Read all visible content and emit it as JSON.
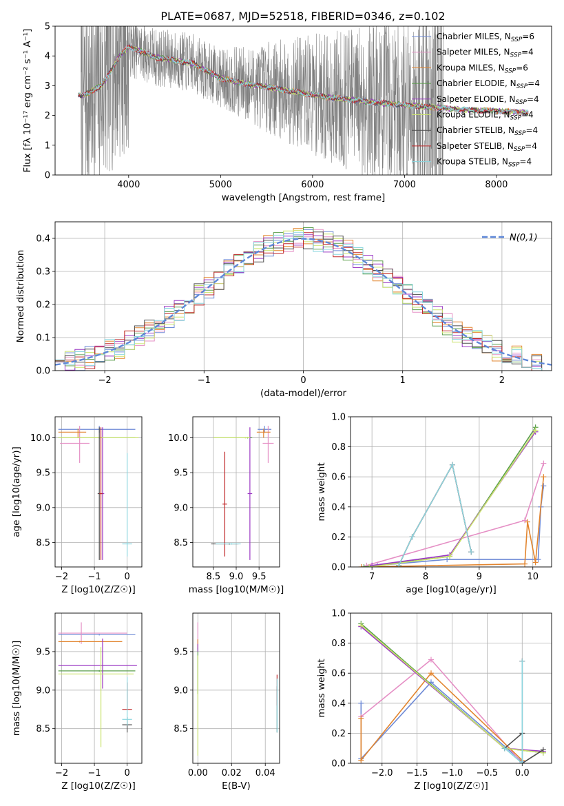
{
  "title": "PLATE=0687, MJD=52518, FIBERID=0346, z=0.102",
  "models": [
    {
      "label": "Chabrier MILES, N",
      "sub": "SSP",
      "tail": "=6",
      "color": "#6e8ad6"
    },
    {
      "label": "Salpeter MILES, N",
      "sub": "SSP",
      "tail": "=4",
      "color": "#e58fc5"
    },
    {
      "label": "Kroupa MILES, N",
      "sub": "SSP",
      "tail": "=6",
      "color": "#e2852f"
    },
    {
      "label": "Chabrier ELODIE, N",
      "sub": "SSP",
      "tail": "=4",
      "color": "#5a9e4b"
    },
    {
      "label": "Salpeter ELODIE, N",
      "sub": "SSP",
      "tail": "=4",
      "color": "#9b38c4"
    },
    {
      "label": "Kroupa ELODIE, N",
      "sub": "SSP",
      "tail": "=4",
      "color": "#c9e26b"
    },
    {
      "label": "Chabrier STELIB, N",
      "sub": "SSP",
      "tail": "=4",
      "color": "#4d4d4d"
    },
    {
      "label": "Salpeter STELIB, N",
      "sub": "SSP",
      "tail": "=4",
      "color": "#c0282a"
    },
    {
      "label": "Kroupa STELIB, N",
      "sub": "SSP",
      "tail": "=4",
      "color": "#8ad6df"
    }
  ],
  "colors": {
    "data": "#808080",
    "normal": "#5e87d8",
    "grid": "#b0b0b0"
  },
  "chart_data": [
    {
      "id": "spectrum",
      "type": "line",
      "title": "PLATE=0687, MJD=52518, FIBERID=0346, z=0.102",
      "xlabel": "wavelength [Angstrom, rest frame]",
      "ylabel": "Flux [fλ 10⁻¹⁷ erg cm⁻² s⁻¹ A⁻¹]",
      "xlim": [
        3200,
        8600
      ],
      "ylim": [
        0,
        5
      ],
      "xticks": [
        4000,
        5000,
        6000,
        7000,
        8000
      ],
      "yticks": [
        0,
        1,
        2,
        3,
        4,
        5
      ],
      "model_continuum": {
        "x": [
          3450,
          3500,
          3700,
          3750,
          3900,
          4000,
          4100,
          4300,
          4500,
          4700,
          4850,
          5000,
          5300,
          5600,
          5900,
          6200,
          6500,
          6800,
          7200,
          7600,
          8000,
          8350
        ],
        "y": [
          2.7,
          2.65,
          3.0,
          3.2,
          4.0,
          4.3,
          4.2,
          3.95,
          3.85,
          3.75,
          3.5,
          3.25,
          3.05,
          2.9,
          2.75,
          2.6,
          2.5,
          2.4,
          2.3,
          2.2,
          2.15,
          2.1
        ]
      },
      "data_spectrum": {
        "x_range": [
          3480,
          7420
        ],
        "note": "noisy observed spectrum, clipped at axis limits"
      },
      "legend_loc": "upper right"
    },
    {
      "id": "residuals",
      "type": "step",
      "xlabel": "(data-model)/error",
      "ylabel": "Normed distribution",
      "xlim": [
        -2.5,
        2.5
      ],
      "ylim": [
        0,
        0.45
      ],
      "xticks": [
        -2,
        -1,
        0,
        1,
        2
      ],
      "yticks": [
        0.0,
        0.1,
        0.2,
        0.3,
        0.4
      ],
      "bin_width": 0.1,
      "bin_start": -2.5,
      "reference_label": "N(0,1)",
      "legend_loc": "upper right"
    },
    {
      "id": "age_vs_Z",
      "type": "errorbar",
      "xlabel": "Z [log10(Z/Z☉)]",
      "ylabel": "age  [log10(age/yr)]",
      "xlim": [
        -2.2,
        0.45
      ],
      "ylim": [
        8.15,
        10.3
      ],
      "xticks": [
        -2,
        -1,
        0
      ],
      "yticks": [
        8.5,
        9.0,
        9.5,
        10.0
      ],
      "points": [
        {
          "m": 0,
          "x": -0.85,
          "xe": [
            1.25,
            1.1
          ],
          "y": 10.12,
          "ye": [
            0.05,
            0.05
          ]
        },
        {
          "m": 1,
          "x": -1.45,
          "xe": [
            0.6,
            0.3
          ],
          "y": 9.92,
          "ye": [
            0.28,
            0.25
          ]
        },
        {
          "m": 2,
          "x": -1.5,
          "xe": [
            0.6,
            0.25
          ],
          "y": 10.08,
          "ye": [
            0.08,
            0.05
          ]
        },
        {
          "m": 3,
          "x": -0.85,
          "xe": [
            1.25,
            1.1
          ],
          "y": 10.0,
          "ye": [
            0.01,
            0.01
          ]
        },
        {
          "m": 4,
          "x": -0.75,
          "xe": [
            0.05,
            0.05
          ],
          "y": 9.2,
          "ye": [
            0.95,
            0.95
          ]
        },
        {
          "m": 5,
          "x": -0.8,
          "xe": [
            1.3,
            1.15
          ],
          "y": 10.0,
          "ye": [
            0.01,
            0.01
          ]
        },
        {
          "m": 6,
          "x": -0.85,
          "xe": [
            0.05,
            0.05
          ],
          "y": 9.2,
          "ye": [
            0.95,
            0.95
          ]
        },
        {
          "m": 7,
          "x": -0.8,
          "xe": [
            0.05,
            0.05
          ],
          "y": 9.2,
          "ye": [
            0.95,
            0.95
          ]
        },
        {
          "m": 8,
          "x": 0.0,
          "xe": [
            0.15,
            0.15
          ],
          "y": 8.48,
          "ye": [
            0.18,
            1.3
          ]
        }
      ]
    },
    {
      "id": "age_vs_mass",
      "type": "errorbar",
      "xlabel": "mass [log10(M/M☉)]",
      "ylabel": "",
      "xlim": [
        8.05,
        9.95
      ],
      "ylim": [
        8.15,
        10.3
      ],
      "xticks": [
        8.5,
        9.0,
        9.5
      ],
      "yticks": [
        8.5,
        9.0,
        9.5,
        10.0
      ],
      "points": [
        {
          "m": 0,
          "x": 9.62,
          "xe": [
            0.15,
            0.15
          ],
          "y": 10.12,
          "ye": [
            0.05,
            0.05
          ]
        },
        {
          "m": 1,
          "x": 9.7,
          "xe": [
            0.12,
            0.12
          ],
          "y": 9.92,
          "ye": [
            0.28,
            0.25
          ]
        },
        {
          "m": 2,
          "x": 9.6,
          "xe": [
            0.15,
            0.15
          ],
          "y": 10.08,
          "ye": [
            0.08,
            0.05
          ]
        },
        {
          "m": 3,
          "x": 9.25,
          "xe": [
            0.75,
            0.1
          ],
          "y": 10.0,
          "ye": [
            0.01,
            0.01
          ]
        },
        {
          "m": 4,
          "x": 9.3,
          "xe": [
            0.05,
            0.05
          ],
          "y": 9.2,
          "ye": [
            0.95,
            0.95
          ]
        },
        {
          "m": 5,
          "x": 9.2,
          "xe": [
            0.7,
            0.1
          ],
          "y": 10.0,
          "ye": [
            0.01,
            0.01
          ]
        },
        {
          "m": 6,
          "x": 8.85,
          "xe": [
            0.4,
            0.2
          ],
          "y": 8.48,
          "ye": [
            0.01,
            0.01
          ]
        },
        {
          "m": 7,
          "x": 8.75,
          "xe": [
            0.05,
            0.05
          ],
          "y": 9.05,
          "ye": [
            0.75,
            0.75
          ]
        },
        {
          "m": 8,
          "x": 8.9,
          "xe": [
            0.35,
            0.2
          ],
          "y": 8.48,
          "ye": [
            0.01,
            0.01
          ]
        }
      ]
    },
    {
      "id": "weight_vs_age",
      "type": "line",
      "xlabel": "age  [log10(age/yr)]",
      "ylabel": "mass weight",
      "xlim": [
        6.6,
        10.35
      ],
      "ylim": [
        0,
        1
      ],
      "xticks": [
        7,
        8,
        9,
        10
      ],
      "yticks": [
        0.0,
        0.2,
        0.4,
        0.6,
        0.8,
        1.0
      ],
      "series": [
        {
          "m": 0,
          "x": [
            7.1,
            8.4,
            10.1,
            10.15,
            10.2
          ],
          "y": [
            0.01,
            0.05,
            0.05,
            0.4,
            0.54
          ]
        },
        {
          "m": 1,
          "x": [
            6.9,
            9.85,
            10.2
          ],
          "y": [
            0.01,
            0.31,
            0.69
          ]
        },
        {
          "m": 2,
          "x": [
            6.8,
            9.85,
            9.9,
            10.05,
            10.2
          ],
          "y": [
            0.0,
            0.02,
            0.3,
            0.03,
            0.6
          ]
        },
        {
          "m": 3,
          "x": [
            6.85,
            8.45,
            10.05
          ],
          "y": [
            0.0,
            0.07,
            0.93
          ]
        },
        {
          "m": 4,
          "x": [
            7.0,
            8.45,
            10.05
          ],
          "y": [
            0.01,
            0.08,
            0.9
          ]
        },
        {
          "m": 5,
          "x": [
            6.95,
            8.45,
            10.05
          ],
          "y": [
            0.0,
            0.07,
            0.91
          ]
        },
        {
          "m": 6,
          "x": [
            7.5,
            7.75,
            8.5,
            8.85
          ],
          "y": [
            0.01,
            0.2,
            0.68,
            0.1
          ]
        },
        {
          "m": 7,
          "x": [
            7.5,
            7.75,
            8.5,
            8.85
          ],
          "y": [
            0.01,
            0.2,
            0.68,
            0.1
          ]
        },
        {
          "m": 8,
          "x": [
            7.5,
            7.75,
            8.5,
            8.85
          ],
          "y": [
            0.01,
            0.2,
            0.68,
            0.1
          ]
        }
      ]
    },
    {
      "id": "mass_vs_Z",
      "type": "errorbar",
      "xlabel": "Z [log10(Z/Z☉)]",
      "ylabel": "mass [log10(M/M☉)]",
      "xlim": [
        -2.2,
        0.45
      ],
      "ylim": [
        8.05,
        10.0
      ],
      "xticks": [
        -2,
        -1,
        0
      ],
      "yticks": [
        8.5,
        9.0,
        9.5
      ],
      "points": [
        {
          "m": 0,
          "x": -0.85,
          "xe": [
            1.25,
            1.1
          ],
          "y": 9.72,
          "ye": [
            0.01,
            0.01
          ]
        },
        {
          "m": 1,
          "x": -1.4,
          "xe": [
            0.7,
            1.4
          ],
          "y": 9.74,
          "ye": [
            0.14,
            0.14
          ]
        },
        {
          "m": 2,
          "x": -1.45,
          "xe": [
            0.65,
            1.3
          ],
          "y": 9.63,
          "ye": [
            0.01,
            0.01
          ]
        },
        {
          "m": 3,
          "x": -0.85,
          "xe": [
            1.25,
            1.1
          ],
          "y": 9.25,
          "ye": [
            0.01,
            0.01
          ]
        },
        {
          "m": 4,
          "x": -0.75,
          "xe": [
            1.35,
            1.05
          ],
          "y": 9.32,
          "ye": [
            0.3,
            0.35
          ]
        },
        {
          "m": 5,
          "x": -0.8,
          "xe": [
            1.3,
            1.0
          ],
          "y": 9.21,
          "ye": [
            0.95,
            0.35
          ]
        },
        {
          "m": 6,
          "x": 0.0,
          "xe": [
            0.15,
            0.15
          ],
          "y": 8.55,
          "ye": [
            0.1,
            0.1
          ]
        },
        {
          "m": 7,
          "x": 0.0,
          "xe": [
            0.15,
            0.15
          ],
          "y": 8.75,
          "ye": [
            0.01,
            0.35
          ]
        },
        {
          "m": 8,
          "x": 0.0,
          "xe": [
            0.15,
            0.15
          ],
          "y": 8.62,
          "ye": [
            0.08,
            0.55
          ]
        }
      ]
    },
    {
      "id": "mass_vs_EBV",
      "type": "errorbar",
      "xlabel": "E(B-V)",
      "ylabel": "",
      "xlim": [
        -0.003,
        0.0485
      ],
      "ylim": [
        8.05,
        10.0
      ],
      "xticks": [
        0.0,
        0.02,
        0.04
      ],
      "yticks": [
        8.5,
        9.0,
        9.5
      ],
      "points": [
        {
          "m": 0,
          "x": 0.0,
          "xe": [
            0.0,
            0.0
          ],
          "y": 9.6,
          "ye": [
            0.05,
            0.05
          ]
        },
        {
          "m": 1,
          "x": 0.0,
          "xe": [
            0.0,
            0.0
          ],
          "y": 9.7,
          "ye": [
            0.18,
            0.18
          ]
        },
        {
          "m": 2,
          "x": 0.0,
          "xe": [
            0.0,
            0.0
          ],
          "y": 9.6,
          "ye": [
            0.06,
            0.06
          ]
        },
        {
          "m": 3,
          "x": 0.0,
          "xe": [
            0.0,
            0.0
          ],
          "y": 9.25,
          "ye": [
            0.3,
            0.3
          ]
        },
        {
          "m": 4,
          "x": 0.0,
          "xe": [
            0.0,
            0.0
          ],
          "y": 9.55,
          "ye": [
            0.05,
            0.05
          ]
        },
        {
          "m": 5,
          "x": 0.0,
          "xe": [
            0.0,
            0.0
          ],
          "y": 8.8,
          "ye": [
            0.65,
            0.65
          ]
        },
        {
          "m": 6,
          "x": 0.047,
          "xe": [
            0.0,
            0.0
          ],
          "y": 8.75,
          "ye": [
            0.3,
            0.3
          ]
        },
        {
          "m": 7,
          "x": 0.047,
          "xe": [
            0.0,
            0.0
          ],
          "y": 9.0,
          "ye": [
            0.2,
            0.2
          ]
        },
        {
          "m": 8,
          "x": 0.047,
          "xe": [
            0.0,
            0.0
          ],
          "y": 8.8,
          "ye": [
            0.35,
            0.35
          ]
        }
      ]
    },
    {
      "id": "weight_vs_Z",
      "type": "line",
      "xlabel": "Z [log10(Z/Z☉)]",
      "ylabel": "mass weight",
      "xlim": [
        -2.45,
        0.42
      ],
      "ylim": [
        0,
        1
      ],
      "xticks": [
        -2.0,
        -1.5,
        -1.0,
        -0.5,
        0.0
      ],
      "yticks": [
        0.0,
        0.2,
        0.4,
        0.6,
        0.8,
        1.0
      ],
      "series": [
        {
          "m": 0,
          "x": [
            -2.3,
            -2.3,
            -1.3,
            0.0,
            0.0
          ],
          "y": [
            0.4,
            0.03,
            0.54,
            0.01,
            0.0
          ]
        },
        {
          "m": 1,
          "x": [
            -2.3,
            -1.3,
            0.0
          ],
          "y": [
            0.31,
            0.69,
            0.0
          ]
        },
        {
          "m": 2,
          "x": [
            -2.3,
            -2.3,
            -1.3,
            0.0
          ],
          "y": [
            0.3,
            0.02,
            0.6,
            0.02
          ]
        },
        {
          "m": 3,
          "x": [
            -2.3,
            -0.25,
            0.3
          ],
          "y": [
            0.93,
            0.1,
            0.07
          ]
        },
        {
          "m": 4,
          "x": [
            -2.3,
            -0.25,
            0.3
          ],
          "y": [
            0.91,
            0.1,
            0.08
          ]
        },
        {
          "m": 5,
          "x": [
            -2.3,
            -0.25,
            0.3
          ],
          "y": [
            0.92,
            0.1,
            0.07
          ]
        },
        {
          "m": 6,
          "x": [
            -0.25,
            0.0,
            0.0,
            0.3
          ],
          "y": [
            0.1,
            0.2,
            0.0,
            0.09
          ]
        },
        {
          "m": 7,
          "x": [
            0.0,
            0.0
          ],
          "y": [
            0.68,
            0.0
          ]
        },
        {
          "m": 8,
          "x": [
            0.0,
            0.0,
            -0.25
          ],
          "y": [
            0.68,
            0.0,
            0.1
          ]
        }
      ]
    }
  ]
}
